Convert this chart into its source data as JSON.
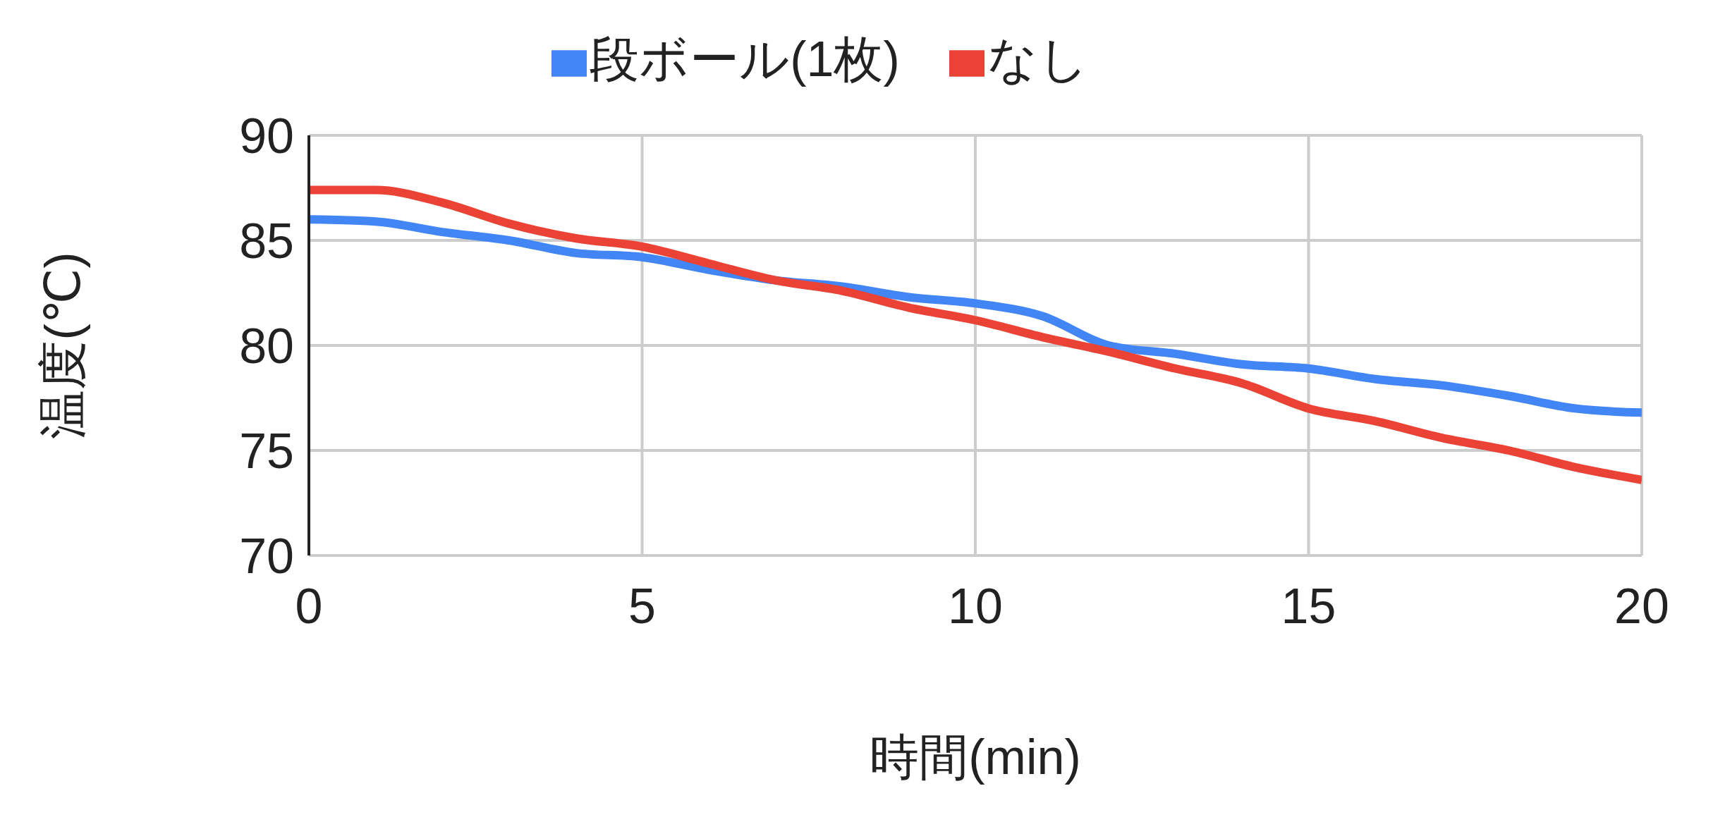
{
  "chart_data": {
    "type": "line",
    "xlabel": "時間(min)",
    "ylabel": "温度(℃)",
    "x": [
      0,
      1,
      2,
      3,
      4,
      5,
      6,
      7,
      8,
      9,
      10,
      11,
      12,
      13,
      14,
      15,
      16,
      17,
      18,
      19,
      20
    ],
    "series": [
      {
        "name": "段ボール(1枚)",
        "color": "#4285f4",
        "values": [
          86.0,
          85.9,
          85.4,
          85.0,
          84.4,
          84.2,
          83.6,
          83.1,
          82.8,
          82.3,
          82.0,
          81.4,
          80.0,
          79.6,
          79.1,
          78.9,
          78.4,
          78.1,
          77.6,
          77.0,
          76.8
        ]
      },
      {
        "name": "なし",
        "color": "#ea4335",
        "values": [
          87.4,
          87.4,
          86.8,
          85.8,
          85.1,
          84.7,
          83.9,
          83.1,
          82.6,
          81.8,
          81.2,
          80.4,
          79.7,
          78.9,
          78.2,
          77.0,
          76.4,
          75.6,
          75.0,
          74.2,
          73.6
        ]
      }
    ],
    "xlim": [
      0,
      20
    ],
    "xticks": [
      0,
      5,
      10,
      15,
      20
    ],
    "ylim": [
      70,
      90
    ],
    "yticks": [
      70,
      75,
      80,
      85,
      90
    ],
    "grid": true,
    "legend": "top",
    "marker": "none",
    "line_style": "solid"
  }
}
